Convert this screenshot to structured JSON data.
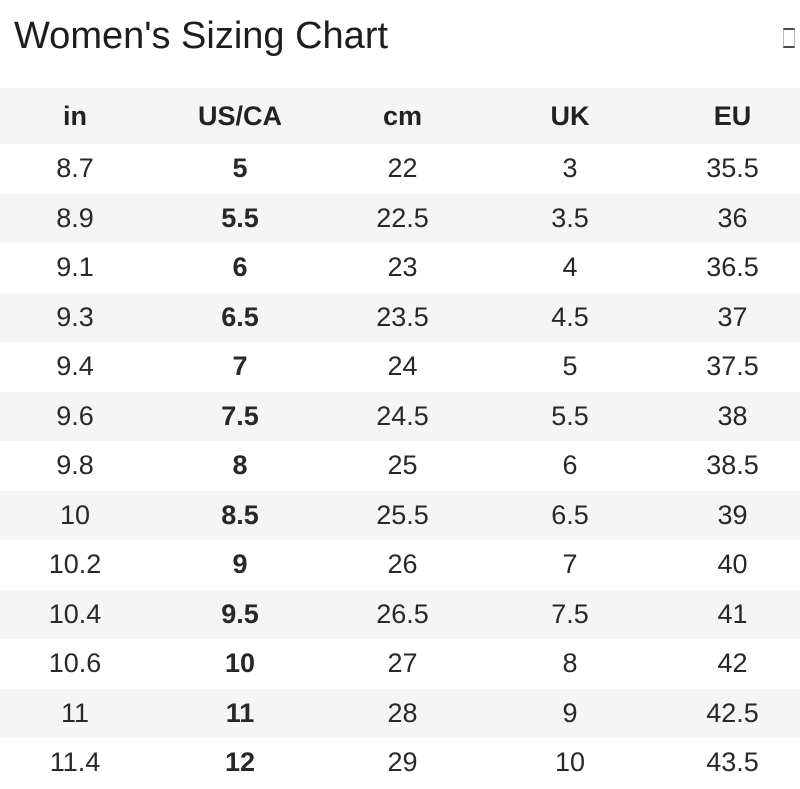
{
  "page": {
    "title": "Women's Sizing Chart"
  },
  "icons": {
    "topright": "missing-glyph-box-icon"
  },
  "colors": {
    "stripe_bg": "#f6f5f5",
    "header_bg": "#f6f5f5",
    "body_text": "#282828",
    "title_text": "#1d1d1d",
    "page_bg": "#ffffff"
  },
  "table": {
    "bold_column_index": 1,
    "columns": [
      {
        "key": "in",
        "label": "in"
      },
      {
        "key": "us-ca",
        "label": "US/CA"
      },
      {
        "key": "cm",
        "label": "cm"
      },
      {
        "key": "uk",
        "label": "UK"
      },
      {
        "key": "eu",
        "label": "EU"
      }
    ],
    "rows": [
      [
        "8.7",
        "5",
        "22",
        "3",
        "35.5"
      ],
      [
        "8.9",
        "5.5",
        "22.5",
        "3.5",
        "36"
      ],
      [
        "9.1",
        "6",
        "23",
        "4",
        "36.5"
      ],
      [
        "9.3",
        "6.5",
        "23.5",
        "4.5",
        "37"
      ],
      [
        "9.4",
        "7",
        "24",
        "5",
        "37.5"
      ],
      [
        "9.6",
        "7.5",
        "24.5",
        "5.5",
        "38"
      ],
      [
        "9.8",
        "8",
        "25",
        "6",
        "38.5"
      ],
      [
        "10",
        "8.5",
        "25.5",
        "6.5",
        "39"
      ],
      [
        "10.2",
        "9",
        "26",
        "7",
        "40"
      ],
      [
        "10.4",
        "9.5",
        "26.5",
        "7.5",
        "41"
      ],
      [
        "10.6",
        "10",
        "27",
        "8",
        "42"
      ],
      [
        "11",
        "11",
        "28",
        "9",
        "42.5"
      ],
      [
        "11.4",
        "12",
        "29",
        "10",
        "43.5"
      ]
    ]
  }
}
